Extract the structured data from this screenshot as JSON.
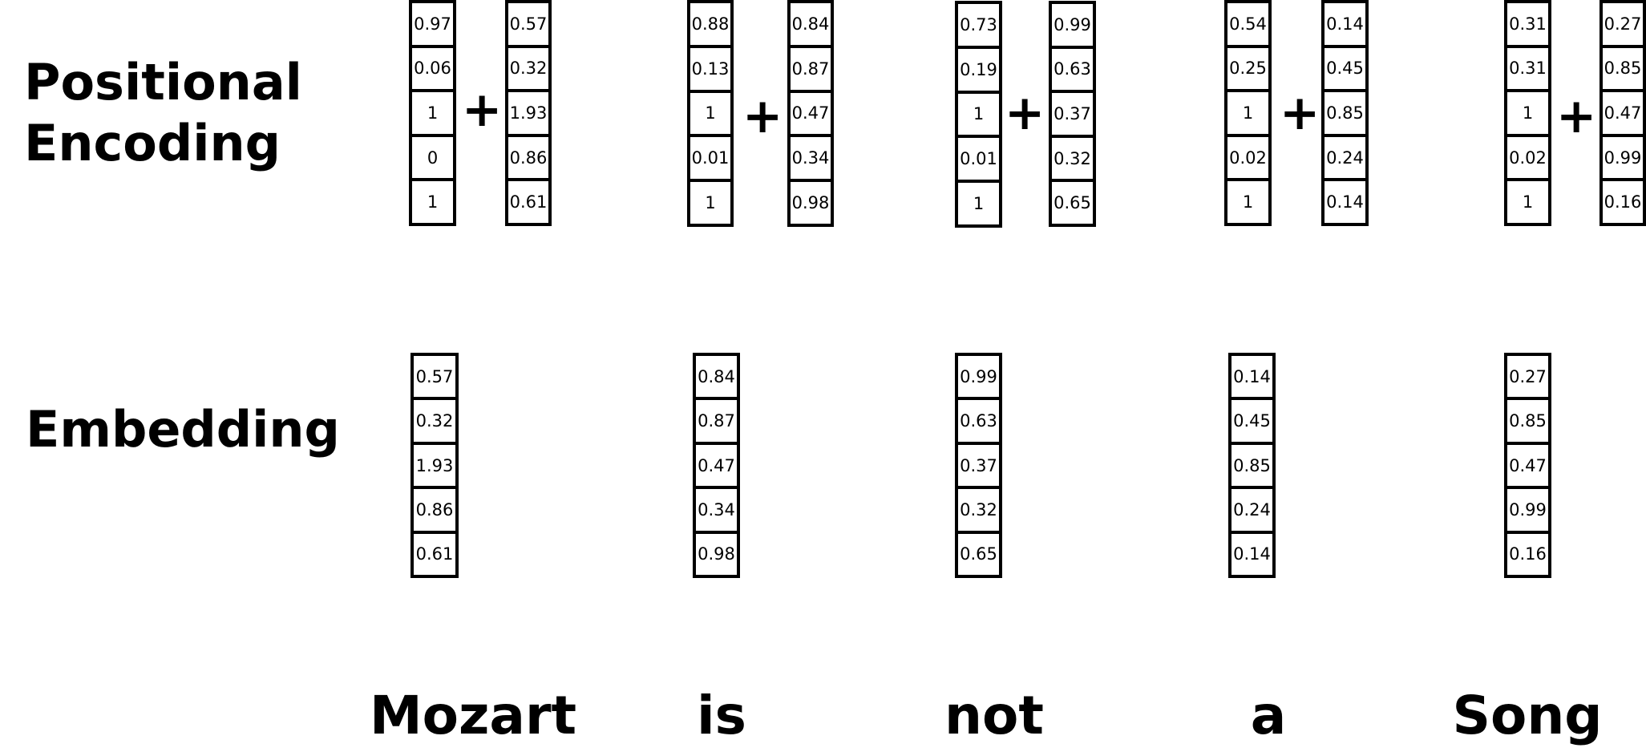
{
  "labels": {
    "positional_line1": "Positional",
    "positional_line2": "Encoding",
    "embedding": "Embedding"
  },
  "plus_symbol": "+",
  "tokens": [
    {
      "word": "Mozart",
      "positional": [
        "0.97",
        "0.06",
        "1",
        "0",
        "1"
      ],
      "embedding": [
        "0.57",
        "0.32",
        "1.93",
        "0.86",
        "0.61"
      ]
    },
    {
      "word": "is",
      "positional": [
        "0.88",
        "0.13",
        "1",
        "0.01",
        "1"
      ],
      "embedding": [
        "0.84",
        "0.87",
        "0.47",
        "0.34",
        "0.98"
      ]
    },
    {
      "word": "not",
      "positional": [
        "0.73",
        "0.19",
        "1",
        "0.01",
        "1"
      ],
      "embedding": [
        "0.99",
        "0.63",
        "0.37",
        "0.32",
        "0.65"
      ]
    },
    {
      "word": "a",
      "positional": [
        "0.54",
        "0.25",
        "1",
        "0.02",
        "1"
      ],
      "embedding": [
        "0.14",
        "0.45",
        "0.85",
        "0.24",
        "0.14"
      ]
    },
    {
      "word": "Song",
      "positional": [
        "0.31",
        "0.31",
        "1",
        "0.02",
        "1"
      ],
      "embedding": [
        "0.27",
        "0.85",
        "0.47",
        "0.99",
        "0.16"
      ]
    }
  ]
}
